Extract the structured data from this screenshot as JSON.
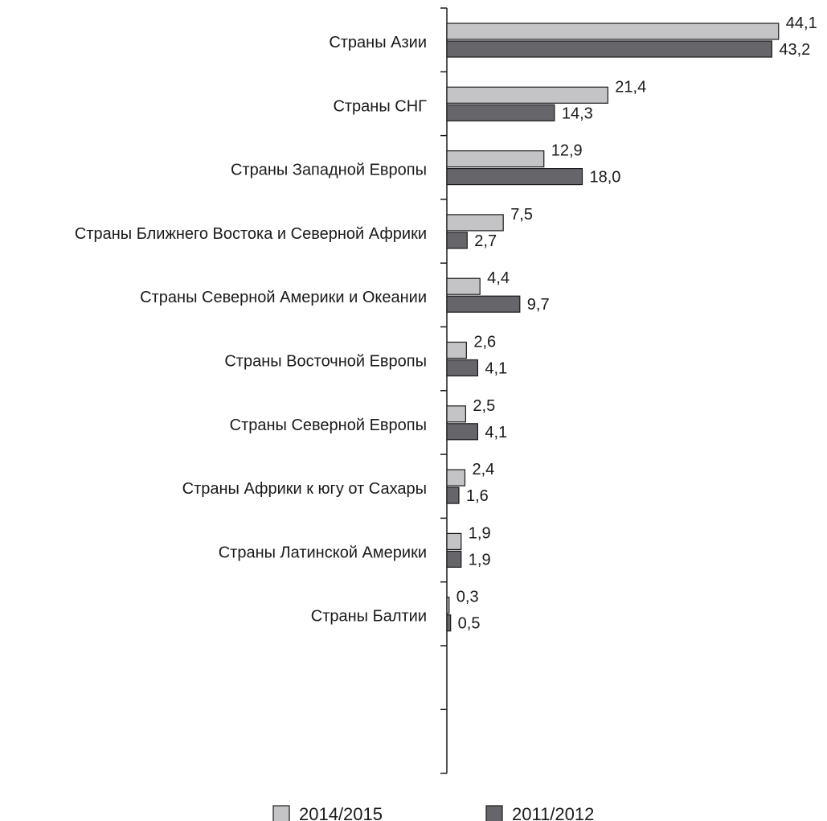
{
  "chart_data": {
    "type": "bar",
    "orientation": "horizontal",
    "categories": [
      "Страны Азии",
      "Страны СНГ",
      "Страны Западной Европы",
      "Страны Ближнего Востока и Северной Африки",
      "Страны Северной Америки и Океании",
      "Страны Восточной Европы",
      "Страны Северной Европы",
      "Страны Африки к югу от Сахары",
      "Страны Латинской Америки",
      "Страны Балтии"
    ],
    "series": [
      {
        "name": "2014/2015",
        "color": "#c4c4c6",
        "values": [
          44.1,
          21.4,
          12.9,
          7.5,
          4.4,
          2.6,
          2.5,
          2.4,
          1.9,
          0.3
        ],
        "value_labels": [
          "44,1",
          "21,4",
          "12,9",
          "7,5",
          "4,4",
          "2,6",
          "2,5",
          "2,4",
          "1,9",
          "0,3"
        ]
      },
      {
        "name": "2011/2012",
        "color": "#66666a",
        "values": [
          43.2,
          14.3,
          18.0,
          2.7,
          9.7,
          4.1,
          4.1,
          1.6,
          1.9,
          0.5
        ],
        "value_labels": [
          "43,2",
          "14,3",
          "18,0",
          "2,7",
          "9,7",
          "4,1",
          "4,1",
          "1,6",
          "1,9",
          "0,5"
        ]
      }
    ],
    "title": "",
    "xlabel": "",
    "ylabel": "",
    "xlim": [
      0,
      45
    ],
    "grid": false,
    "legend_position": "bottom"
  }
}
